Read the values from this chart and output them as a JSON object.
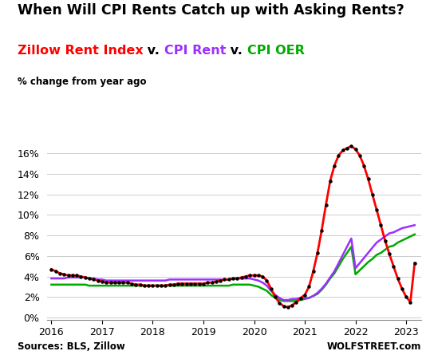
{
  "title": "When Will CPI Rents Catch up with Asking Rents?",
  "subtitle_parts": [
    {
      "text": "Zillow Rent Index",
      "color": "#FF0000"
    },
    {
      "text": " v. ",
      "color": "#000000"
    },
    {
      "text": "CPI Rent",
      "color": "#9B30FF"
    },
    {
      "text": " v. ",
      "color": "#000000"
    },
    {
      "text": "CPI OER",
      "color": "#00AA00"
    }
  ],
  "ylabel": "% change from year ago",
  "source_left": "Sources: BLS, Zillow",
  "source_right": "WOLFSTREET.com",
  "ylim": [
    -0.002,
    0.178
  ],
  "yticks": [
    0.0,
    0.02,
    0.04,
    0.06,
    0.08,
    0.1,
    0.12,
    0.14,
    0.16
  ],
  "zillow_x": [
    2016.0,
    2016.083,
    2016.167,
    2016.25,
    2016.333,
    2016.417,
    2016.5,
    2016.583,
    2016.667,
    2016.75,
    2016.833,
    2016.917,
    2017.0,
    2017.083,
    2017.167,
    2017.25,
    2017.333,
    2017.417,
    2017.5,
    2017.583,
    2017.667,
    2017.75,
    2017.833,
    2017.917,
    2018.0,
    2018.083,
    2018.167,
    2018.25,
    2018.333,
    2018.417,
    2018.5,
    2018.583,
    2018.667,
    2018.75,
    2018.833,
    2018.917,
    2019.0,
    2019.083,
    2019.167,
    2019.25,
    2019.333,
    2019.417,
    2019.5,
    2019.583,
    2019.667,
    2019.75,
    2019.833,
    2019.917,
    2020.0,
    2020.083,
    2020.167,
    2020.25,
    2020.333,
    2020.417,
    2020.5,
    2020.583,
    2020.667,
    2020.75,
    2020.833,
    2020.917,
    2021.0,
    2021.083,
    2021.167,
    2021.25,
    2021.333,
    2021.417,
    2021.5,
    2021.583,
    2021.667,
    2021.75,
    2021.833,
    2021.917,
    2022.0,
    2022.083,
    2022.167,
    2022.25,
    2022.333,
    2022.417,
    2022.5,
    2022.583,
    2022.667,
    2022.75,
    2022.833,
    2022.917,
    2023.0,
    2023.083,
    2023.167
  ],
  "zillow_y": [
    0.047,
    0.045,
    0.043,
    0.042,
    0.041,
    0.041,
    0.041,
    0.04,
    0.039,
    0.038,
    0.037,
    0.036,
    0.035,
    0.034,
    0.034,
    0.034,
    0.034,
    0.034,
    0.034,
    0.033,
    0.032,
    0.032,
    0.031,
    0.031,
    0.031,
    0.031,
    0.031,
    0.031,
    0.032,
    0.032,
    0.033,
    0.033,
    0.033,
    0.033,
    0.033,
    0.033,
    0.033,
    0.034,
    0.034,
    0.035,
    0.036,
    0.037,
    0.037,
    0.038,
    0.038,
    0.039,
    0.04,
    0.041,
    0.041,
    0.041,
    0.04,
    0.036,
    0.028,
    0.02,
    0.014,
    0.011,
    0.01,
    0.012,
    0.015,
    0.019,
    0.022,
    0.03,
    0.045,
    0.063,
    0.085,
    0.11,
    0.133,
    0.148,
    0.158,
    0.163,
    0.165,
    0.167,
    0.164,
    0.158,
    0.148,
    0.135,
    0.12,
    0.105,
    0.09,
    0.075,
    0.062,
    0.05,
    0.038,
    0.028,
    0.02,
    0.015,
    0.053
  ],
  "cpi_rent_x": [
    2016.0,
    2016.083,
    2016.167,
    2016.25,
    2016.333,
    2016.417,
    2016.5,
    2016.583,
    2016.667,
    2016.75,
    2016.833,
    2016.917,
    2017.0,
    2017.083,
    2017.167,
    2017.25,
    2017.333,
    2017.417,
    2017.5,
    2017.583,
    2017.667,
    2017.75,
    2017.833,
    2017.917,
    2018.0,
    2018.083,
    2018.167,
    2018.25,
    2018.333,
    2018.417,
    2018.5,
    2018.583,
    2018.667,
    2018.75,
    2018.833,
    2018.917,
    2019.0,
    2019.083,
    2019.167,
    2019.25,
    2019.333,
    2019.417,
    2019.5,
    2019.583,
    2019.667,
    2019.75,
    2019.833,
    2019.917,
    2020.0,
    2020.083,
    2020.167,
    2020.25,
    2020.333,
    2020.417,
    2020.5,
    2020.583,
    2020.667,
    2020.75,
    2020.833,
    2020.917,
    2021.0,
    2021.083,
    2021.167,
    2021.25,
    2021.333,
    2021.417,
    2021.5,
    2021.583,
    2021.667,
    2021.75,
    2021.833,
    2021.917,
    2022.0,
    2022.083,
    2022.167,
    2022.25,
    2022.333,
    2022.417,
    2022.5,
    2022.583,
    2022.667,
    2022.75,
    2022.833,
    2022.917,
    2023.0,
    2023.083,
    2023.167
  ],
  "cpi_rent_y": [
    0.038,
    0.038,
    0.038,
    0.038,
    0.039,
    0.039,
    0.039,
    0.039,
    0.039,
    0.038,
    0.038,
    0.037,
    0.037,
    0.036,
    0.036,
    0.036,
    0.036,
    0.036,
    0.036,
    0.036,
    0.036,
    0.036,
    0.036,
    0.036,
    0.036,
    0.036,
    0.036,
    0.036,
    0.037,
    0.037,
    0.037,
    0.037,
    0.037,
    0.037,
    0.037,
    0.037,
    0.037,
    0.037,
    0.037,
    0.037,
    0.037,
    0.037,
    0.037,
    0.038,
    0.038,
    0.038,
    0.038,
    0.038,
    0.037,
    0.036,
    0.034,
    0.031,
    0.026,
    0.022,
    0.019,
    0.017,
    0.017,
    0.018,
    0.018,
    0.019,
    0.019,
    0.019,
    0.021,
    0.024,
    0.028,
    0.033,
    0.039,
    0.045,
    0.053,
    0.061,
    0.069,
    0.077,
    0.048,
    0.053,
    0.058,
    0.063,
    0.068,
    0.073,
    0.076,
    0.079,
    0.082,
    0.083,
    0.085,
    0.087,
    0.088,
    0.089,
    0.09
  ],
  "cpi_oer_x": [
    2016.0,
    2016.083,
    2016.167,
    2016.25,
    2016.333,
    2016.417,
    2016.5,
    2016.583,
    2016.667,
    2016.75,
    2016.833,
    2016.917,
    2017.0,
    2017.083,
    2017.167,
    2017.25,
    2017.333,
    2017.417,
    2017.5,
    2017.583,
    2017.667,
    2017.75,
    2017.833,
    2017.917,
    2018.0,
    2018.083,
    2018.167,
    2018.25,
    2018.333,
    2018.417,
    2018.5,
    2018.583,
    2018.667,
    2018.75,
    2018.833,
    2018.917,
    2019.0,
    2019.083,
    2019.167,
    2019.25,
    2019.333,
    2019.417,
    2019.5,
    2019.583,
    2019.667,
    2019.75,
    2019.833,
    2019.917,
    2020.0,
    2020.083,
    2020.167,
    2020.25,
    2020.333,
    2020.417,
    2020.5,
    2020.583,
    2020.667,
    2020.75,
    2020.833,
    2020.917,
    2021.0,
    2021.083,
    2021.167,
    2021.25,
    2021.333,
    2021.417,
    2021.5,
    2021.583,
    2021.667,
    2021.75,
    2021.833,
    2021.917,
    2022.0,
    2022.083,
    2022.167,
    2022.25,
    2022.333,
    2022.417,
    2022.5,
    2022.583,
    2022.667,
    2022.75,
    2022.833,
    2022.917,
    2023.0,
    2023.083,
    2023.167
  ],
  "cpi_oer_y": [
    0.032,
    0.032,
    0.032,
    0.032,
    0.032,
    0.032,
    0.032,
    0.032,
    0.032,
    0.031,
    0.031,
    0.031,
    0.031,
    0.031,
    0.031,
    0.031,
    0.031,
    0.031,
    0.031,
    0.031,
    0.031,
    0.031,
    0.031,
    0.031,
    0.031,
    0.031,
    0.031,
    0.031,
    0.031,
    0.031,
    0.031,
    0.031,
    0.031,
    0.031,
    0.031,
    0.031,
    0.031,
    0.031,
    0.031,
    0.031,
    0.031,
    0.031,
    0.031,
    0.032,
    0.032,
    0.032,
    0.032,
    0.032,
    0.031,
    0.03,
    0.028,
    0.026,
    0.022,
    0.019,
    0.017,
    0.016,
    0.016,
    0.016,
    0.016,
    0.017,
    0.018,
    0.019,
    0.021,
    0.023,
    0.027,
    0.032,
    0.038,
    0.043,
    0.05,
    0.057,
    0.063,
    0.069,
    0.042,
    0.046,
    0.05,
    0.054,
    0.057,
    0.061,
    0.063,
    0.066,
    0.069,
    0.07,
    0.073,
    0.075,
    0.077,
    0.079,
    0.081
  ],
  "zillow_color": "#FF0000",
  "cpi_rent_color": "#9B30FF",
  "cpi_oer_color": "#00AA00",
  "dot_color": "#000000",
  "background_color": "#FFFFFF",
  "grid_color": "#CCCCCC"
}
